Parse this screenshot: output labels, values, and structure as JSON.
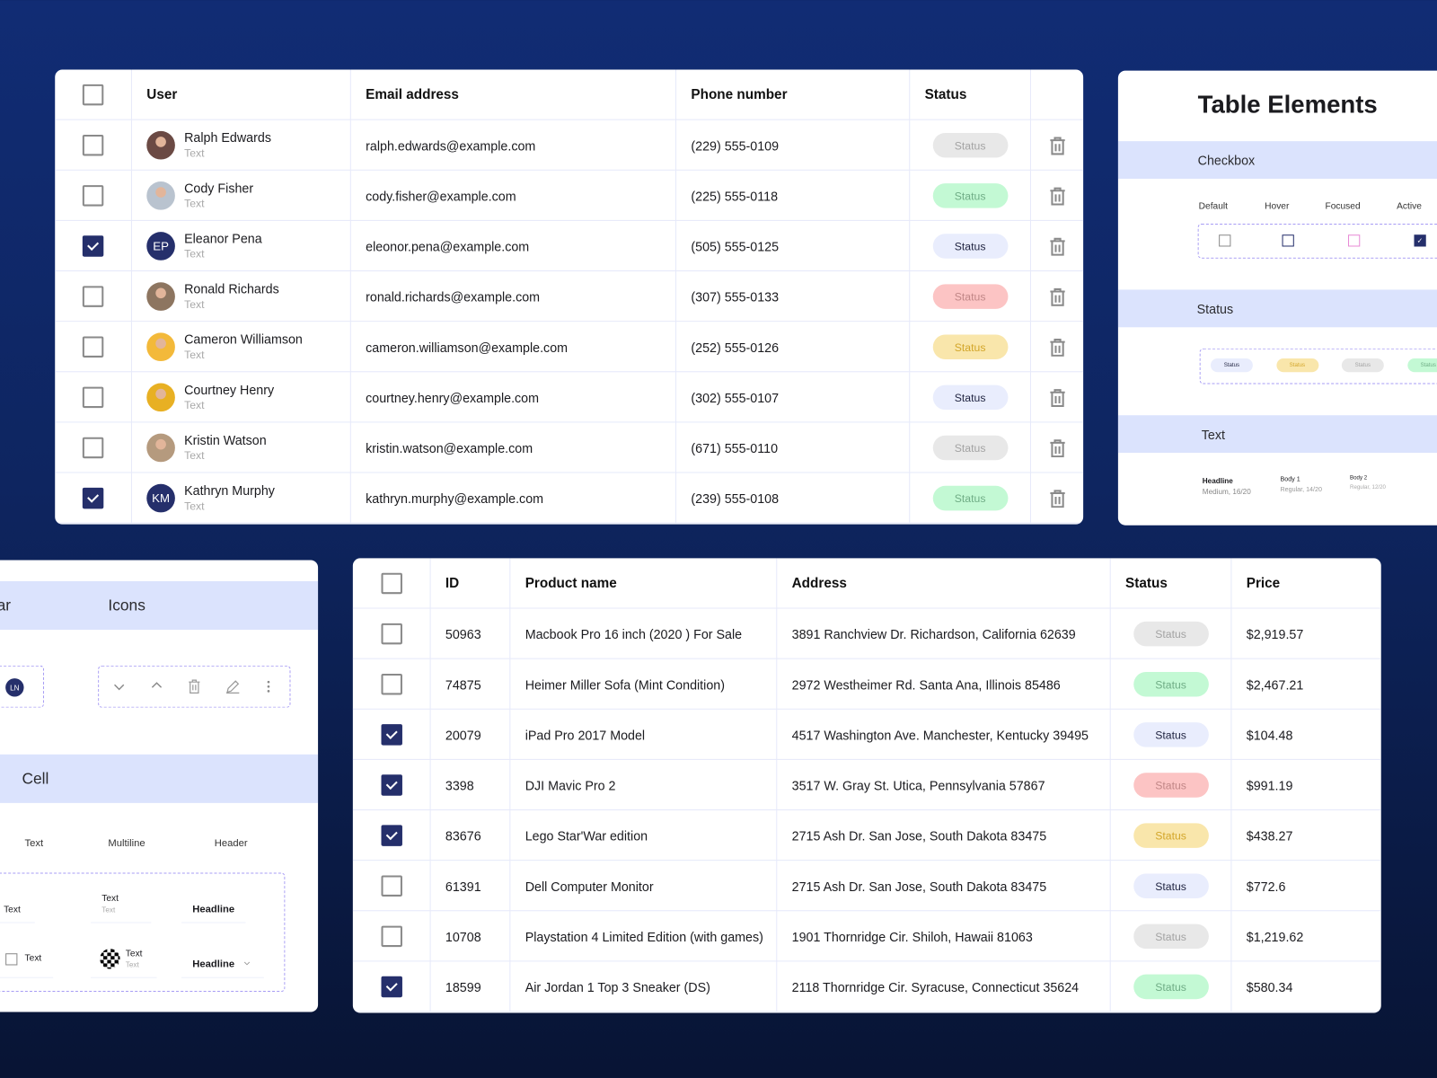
{
  "status_styles": {
    "gray": {
      "bg": "#e8e8e8",
      "fg": "#a3a3a3"
    },
    "green": {
      "bg": "#c3f9d4",
      "fg": "#70ad86"
    },
    "blue": {
      "bg": "#e9edfd",
      "fg": "#1f2340"
    },
    "red": {
      "bg": "#fcc4c4",
      "fg": "#c18787"
    },
    "yellow": {
      "bg": "#f9e6ab",
      "fg": "#d3a62a"
    }
  },
  "users_table": {
    "headers": {
      "user": "User",
      "email": "Email address",
      "phone": "Phone number",
      "status": "Status"
    },
    "rows": [
      {
        "checked": false,
        "name": "Ralph Edwards",
        "sub": "Text",
        "avatar": "photo",
        "avatar_color": "#6b4a44",
        "email": "ralph.edwards@example.com",
        "phone": "(229) 555-0109",
        "status": "Status",
        "status_style": "gray"
      },
      {
        "checked": false,
        "name": "Cody Fisher",
        "sub": "Text",
        "avatar": "photo",
        "avatar_color": "#b9c3cf",
        "email": "cody.fisher@example.com",
        "phone": "(225) 555-0118",
        "status": "Status",
        "status_style": "green"
      },
      {
        "checked": true,
        "name": "Eleanor Pena",
        "sub": "Text",
        "avatar": "EP",
        "avatar_color": "#252f6b",
        "email": "eleonor.pena@example.com",
        "phone": "(505) 555-0125",
        "status": "Status",
        "status_style": "blue"
      },
      {
        "checked": false,
        "name": "Ronald Richards",
        "sub": "Text",
        "avatar": "photo",
        "avatar_color": "#8d7560",
        "email": "ronald.richards@example.com",
        "phone": "(307) 555-0133",
        "status": "Status",
        "status_style": "red"
      },
      {
        "checked": false,
        "name": "Cameron Williamson",
        "sub": "Text",
        "avatar": "photo",
        "avatar_color": "#f3b93a",
        "email": "cameron.williamson@example.com",
        "phone": "(252) 555-0126",
        "status": "Status",
        "status_style": "yellow"
      },
      {
        "checked": false,
        "name": "Courtney Henry",
        "sub": "Text",
        "avatar": "photo",
        "avatar_color": "#e8b023",
        "email": "courtney.henry@example.com",
        "phone": "(302) 555-0107",
        "status": "Status",
        "status_style": "blue"
      },
      {
        "checked": false,
        "name": "Kristin Watson",
        "sub": "Text",
        "avatar": "photo",
        "avatar_color": "#b59a7e",
        "email": "kristin.watson@example.com",
        "phone": "(671) 555-0110",
        "status": "Status",
        "status_style": "gray"
      },
      {
        "checked": true,
        "name": "Kathryn Murphy",
        "sub": "Text",
        "avatar": "KM",
        "avatar_color": "#252f6b",
        "email": "kathryn.murphy@example.com",
        "phone": "(239) 555-0108",
        "status": "Status",
        "status_style": "green"
      }
    ]
  },
  "products_table": {
    "headers": {
      "id": "ID",
      "name": "Product name",
      "address": "Address",
      "status": "Status",
      "price": "Price"
    },
    "rows": [
      {
        "checked": false,
        "id": "50963",
        "name": "Macbook Pro 16 inch (2020 ) For Sale",
        "address": "3891 Ranchview Dr. Richardson, California 62639",
        "status": "Status",
        "status_style": "gray",
        "price": "$2,919.57"
      },
      {
        "checked": false,
        "id": "74875",
        "name": "Heimer Miller Sofa (Mint Condition)",
        "address": "2972 Westheimer Rd. Santa Ana, Illinois 85486",
        "status": "Status",
        "status_style": "green",
        "price": "$2,467.21"
      },
      {
        "checked": true,
        "id": "20079",
        "name": "iPad Pro 2017 Model",
        "address": "4517 Washington Ave. Manchester, Kentucky 39495",
        "status": "Status",
        "status_style": "blue",
        "price": "$104.48"
      },
      {
        "checked": true,
        "id": "3398",
        "name": "DJI Mavic Pro 2",
        "address": "3517 W. Gray St. Utica, Pennsylvania 57867",
        "status": "Status",
        "status_style": "red",
        "price": "$991.19"
      },
      {
        "checked": true,
        "id": "83676",
        "name": "Lego Star'War edition",
        "address": "2715 Ash Dr. San Jose, South Dakota 83475",
        "status": "Status",
        "status_style": "yellow",
        "price": "$438.27"
      },
      {
        "checked": false,
        "id": "61391",
        "name": "Dell Computer Monitor",
        "address": "2715 Ash Dr. San Jose, South Dakota 83475",
        "status": "Status",
        "status_style": "blue",
        "price": "$772.6"
      },
      {
        "checked": false,
        "id": "10708",
        "name": "Playstation 4 Limited Edition (with games)",
        "address": "1901 Thornridge Cir. Shiloh, Hawaii 81063",
        "status": "Status",
        "status_style": "gray",
        "price": "$1,219.62"
      },
      {
        "checked": true,
        "id": "18599",
        "name": "Air Jordan 1 Top 3 Sneaker (DS)",
        "address": "2118 Thornridge Cir. Syracuse, Connecticut 35624",
        "status": "Status",
        "status_style": "green",
        "price": "$580.34"
      }
    ]
  },
  "elements_panel": {
    "title": "Table Elements",
    "checkbox_section": "Checkbox",
    "checkbox_states": [
      "Default",
      "Hover",
      "Focused",
      "Active"
    ],
    "status_section": "Status",
    "status_samples": [
      {
        "label": "Status",
        "style": "blue"
      },
      {
        "label": "Status",
        "style": "yellow"
      },
      {
        "label": "Status",
        "style": "gray"
      },
      {
        "label": "Status",
        "style": "green"
      }
    ],
    "text_section": "Text",
    "text_styles": [
      {
        "name": "Headline",
        "spec": "Medium, 16/20"
      },
      {
        "name": "Body 1",
        "spec": "Regular, 14/20"
      },
      {
        "name": "Body 2",
        "spec": "Regular, 12/20"
      }
    ]
  },
  "components_panel": {
    "avatar_section": "Avatar",
    "avatar_initials": "LN",
    "icons_section": "Icons",
    "cell_section": "Cell",
    "cell_types": [
      "Text",
      "Multiline",
      "Header"
    ],
    "cells": {
      "text": "Text",
      "multiline_title": "Text",
      "multiline_sub": "Text",
      "header": "Headline",
      "checkbox_text": "Text",
      "image_title": "Text",
      "image_sub": "Text",
      "header_dropdown": "Headline"
    }
  }
}
